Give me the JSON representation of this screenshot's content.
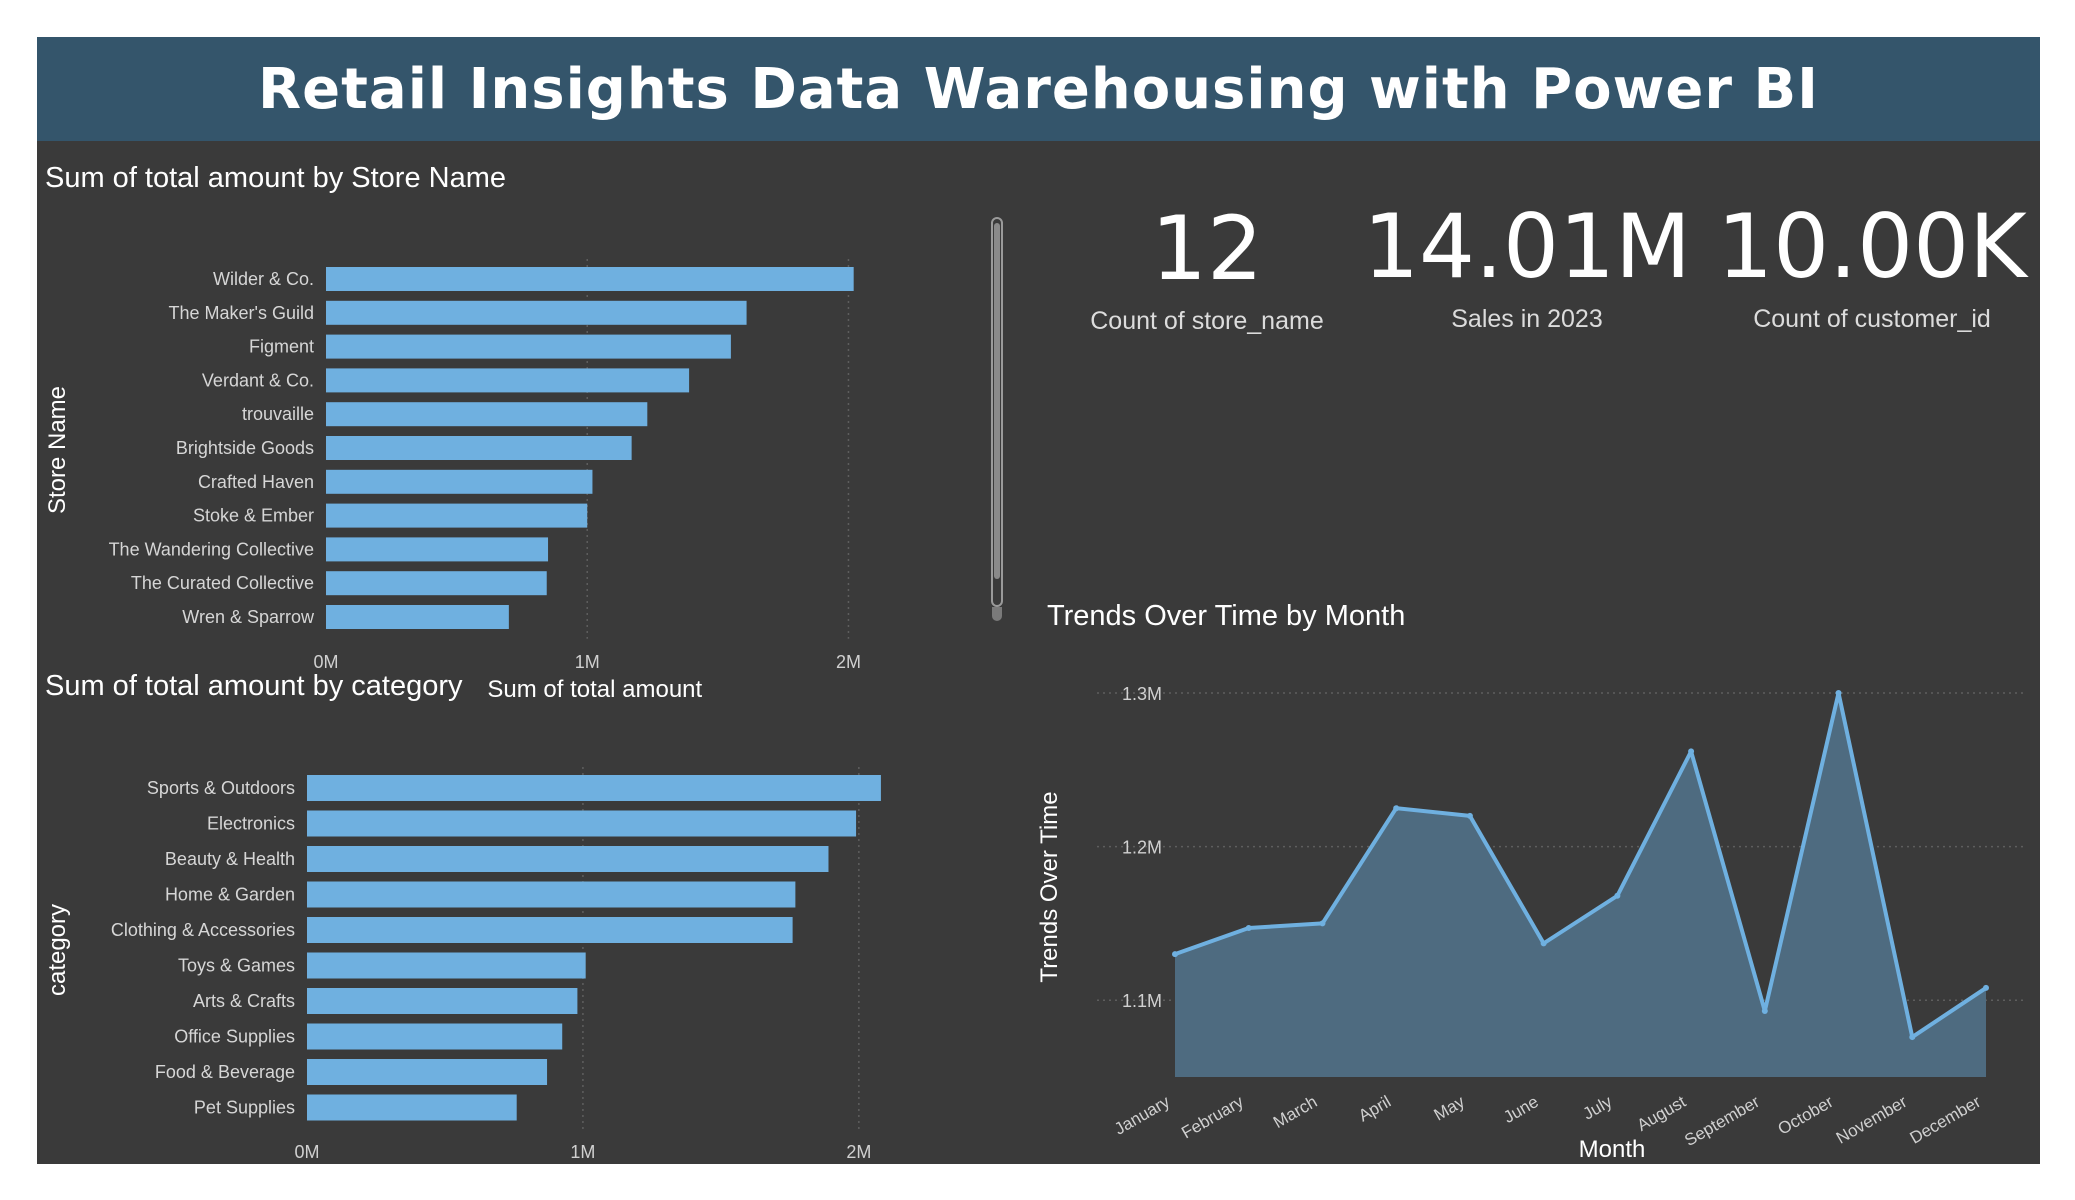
{
  "header": {
    "title": "Retail Insights Data Warehousing with Power BI"
  },
  "kpis": [
    {
      "value": "12",
      "label": "Count of store_name"
    },
    {
      "value": "14.01M",
      "label": "Sales in 2023"
    },
    {
      "value": "10.00K",
      "label": "Count of customer_id"
    }
  ],
  "colors": {
    "bar": "#6fb0e0",
    "line": "#6fb0e0",
    "area": "#4e6b80",
    "header_bg": "#34556b",
    "panel_bg": "#3a3a3a"
  },
  "chart_data": [
    {
      "type": "bar",
      "orientation": "horizontal",
      "title": "Sum of total amount by Store Name",
      "xlabel": "Sum of total amount",
      "ylabel": "Store Name",
      "categories": [
        "Wilder & Co.",
        "The Maker's Guild",
        "Figment",
        "Verdant & Co.",
        "trouvaille",
        "Brightside Goods",
        "Crafted Haven",
        "Stoke & Ember",
        "The Wandering Collective",
        "The Curated Collective",
        "Wren & Sparrow"
      ],
      "values": [
        2.02,
        1.61,
        1.55,
        1.39,
        1.23,
        1.17,
        1.02,
        1.0,
        0.85,
        0.845,
        0.7
      ],
      "value_unit": "M",
      "xlim": [
        0,
        2.45
      ],
      "xticks": [
        "0M",
        "1M",
        "2M"
      ],
      "xtick_values": [
        0,
        1,
        2
      ],
      "grid": "vertical dotted",
      "scrollable": true
    },
    {
      "type": "bar",
      "orientation": "horizontal",
      "title": "Sum of total amount by category",
      "xlabel": "Sum of total amount",
      "ylabel": "category",
      "categories": [
        "Sports & Outdoors",
        "Electronics",
        "Beauty & Health",
        "Home & Garden",
        "Clothing & Accessories",
        "Toys & Games",
        "Arts & Crafts",
        "Office Supplies",
        "Food & Beverage",
        "Pet Supplies"
      ],
      "values": [
        2.08,
        1.99,
        1.89,
        1.77,
        1.76,
        1.01,
        0.98,
        0.925,
        0.87,
        0.76
      ],
      "value_unit": "M",
      "xlim": [
        0,
        2.45
      ],
      "xticks": [
        "0M",
        "1M",
        "2M"
      ],
      "xtick_values": [
        0,
        1,
        2
      ],
      "grid": "vertical dotted"
    },
    {
      "type": "area",
      "title": "Trends Over Time by Month",
      "xlabel": "Month",
      "ylabel": "Trends Over Time",
      "categories": [
        "January",
        "February",
        "March",
        "April",
        "May",
        "June",
        "July",
        "August",
        "September",
        "October",
        "November",
        "December"
      ],
      "values": [
        1.13,
        1.147,
        1.15,
        1.225,
        1.22,
        1.137,
        1.168,
        1.262,
        1.093,
        1.3,
        1.076,
        1.108
      ],
      "value_unit": "M",
      "ylim": [
        1.05,
        1.3
      ],
      "yticks": [
        "1.1M",
        "1.2M",
        "1.3M"
      ],
      "ytick_values": [
        1.1,
        1.2,
        1.3
      ],
      "grid": "horizontal dotted"
    }
  ]
}
